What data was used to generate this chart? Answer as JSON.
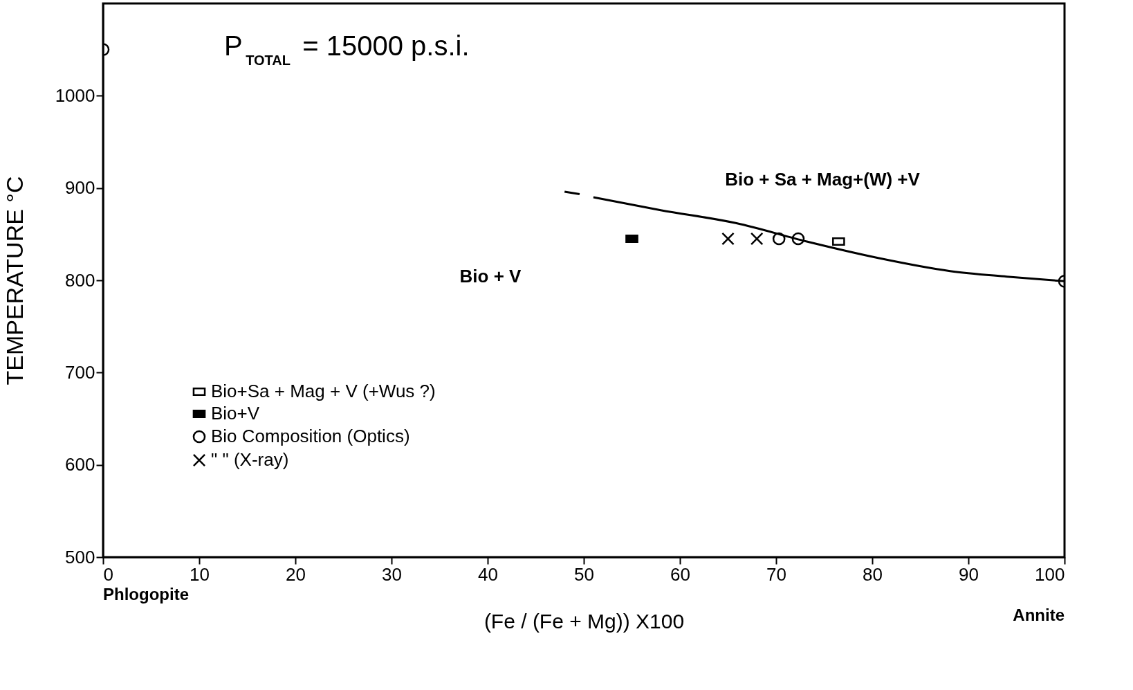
{
  "chart_data": {
    "type": "scatter",
    "xlabel": "(Fe / (Fe + Mg)) X100",
    "ylabel": "TEMPERATURE °C",
    "xlim": [
      0,
      100
    ],
    "xticks": [
      0,
      10,
      20,
      30,
      40,
      50,
      60,
      70,
      80,
      90,
      100
    ],
    "ylim": [
      500,
      1100
    ],
    "yticks": [
      500,
      600,
      700,
      800,
      900,
      1000
    ],
    "grid": false,
    "legend": "bottom left",
    "series": [
      {
        "name": "Bio+Sa + Mag + V (+Wus ?)",
        "marker": "square",
        "color": "#000000",
        "x": [
          76.5
        ],
        "values": [
          842
        ]
      },
      {
        "name": "Bio+V",
        "marker": "square",
        "color": "#000000",
        "colors": [
          "#000000"
        ],
        "x": [
          55
        ],
        "values": [
          845
        ]
      },
      {
        "name": "Bio Composition (Optics)",
        "marker": "circle",
        "color": "#000000",
        "x": [
          0,
          70.3,
          72.3,
          100
        ],
        "values": [
          1050,
          845,
          845,
          799
        ]
      },
      {
        "name": "\"                  \"         (X-ray)",
        "marker": "cross",
        "color": "#000000",
        "x": [
          65,
          68
        ],
        "values": [
          845,
          845
        ]
      },
      {
        "type": "line",
        "line_style": "dashed",
        "color": "#000000",
        "x": [
          48,
          49.8
        ],
        "values": [
          896,
          893
        ]
      },
      {
        "type": "line",
        "line_style": "solid",
        "color": "#000000",
        "x": [
          51,
          58,
          65.8,
          73.2,
          80.7,
          88.1,
          94,
          100
        ],
        "values": [
          890,
          876,
          862,
          842,
          824,
          810,
          804,
          799
        ]
      }
    ],
    "annotations": [
      "P$_{TOTAL}$ = 15000 p.s.i.",
      "Bio + Sa + Mag+(W) +V",
      "Bio + V",
      "Phlogopite",
      "Annite"
    ]
  }
}
